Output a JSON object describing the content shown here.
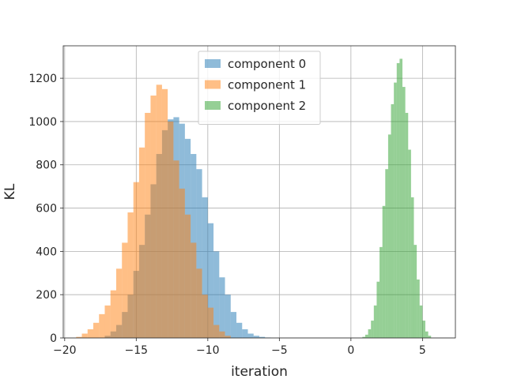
{
  "chart_data": {
    "type": "bar",
    "subtype": "histogram",
    "title": "",
    "xlabel": "iteration",
    "ylabel": "KL",
    "xlim": [
      -20.1,
      7.3
    ],
    "ylim": [
      0,
      1350
    ],
    "xticks": [
      -20,
      -15,
      -10,
      -5,
      0,
      5
    ],
    "xtick_labels": [
      "−20",
      "−15",
      "−10",
      "−5",
      "0",
      "5"
    ],
    "yticks": [
      0,
      200,
      400,
      600,
      800,
      1000,
      1200
    ],
    "ytick_labels": [
      "0",
      "200",
      "400",
      "600",
      "800",
      "1000",
      "1200"
    ],
    "grid": true,
    "legend_position": "top-center",
    "series": [
      {
        "name": "component 0",
        "color": "#1f77b4",
        "alpha": 0.5,
        "bin_edges": [
          -17.2,
          -16.8,
          -16.4,
          -16.0,
          -15.6,
          -15.2,
          -14.8,
          -14.4,
          -14.0,
          -13.6,
          -13.2,
          -12.8,
          -12.4,
          -12.0,
          -11.6,
          -11.2,
          -10.8,
          -10.4,
          -10.0,
          -9.6,
          -9.2,
          -8.8,
          -8.4,
          -8.0,
          -7.6,
          -7.2,
          -6.8,
          -6.4,
          -6.0,
          -5.6
        ],
        "counts": [
          10,
          30,
          60,
          120,
          200,
          310,
          430,
          570,
          710,
          850,
          960,
          1010,
          1020,
          990,
          920,
          850,
          780,
          650,
          530,
          400,
          280,
          200,
          120,
          70,
          40,
          20,
          10,
          5,
          2
        ]
      },
      {
        "name": "component 1",
        "color": "#ff7f0e",
        "alpha": 0.5,
        "bin_edges": [
          -19.2,
          -18.8,
          -18.4,
          -18.0,
          -17.6,
          -17.2,
          -16.8,
          -16.4,
          -16.0,
          -15.6,
          -15.2,
          -14.8,
          -14.4,
          -14.0,
          -13.6,
          -13.2,
          -12.8,
          -12.4,
          -12.0,
          -11.6,
          -11.2,
          -10.8,
          -10.4,
          -10.0,
          -9.6,
          -9.2,
          -8.8,
          -8.4
        ],
        "counts": [
          5,
          20,
          40,
          70,
          110,
          150,
          220,
          320,
          440,
          580,
          720,
          880,
          1040,
          1120,
          1170,
          1150,
          1000,
          820,
          690,
          570,
          440,
          320,
          200,
          140,
          60,
          30,
          10
        ]
      },
      {
        "name": "component 2",
        "color": "#2ca02c",
        "alpha": 0.5,
        "bin_edges": [
          0.8,
          1.0,
          1.2,
          1.4,
          1.6,
          1.8,
          2.0,
          2.2,
          2.4,
          2.6,
          2.8,
          3.0,
          3.2,
          3.4,
          3.6,
          3.8,
          4.0,
          4.2,
          4.4,
          4.6,
          4.8,
          5.0,
          5.2,
          5.4,
          5.6
        ],
        "counts": [
          5,
          15,
          40,
          80,
          150,
          260,
          420,
          610,
          780,
          940,
          1080,
          1180,
          1270,
          1290,
          1160,
          1040,
          870,
          650,
          430,
          270,
          150,
          80,
          30,
          10
        ]
      }
    ]
  }
}
